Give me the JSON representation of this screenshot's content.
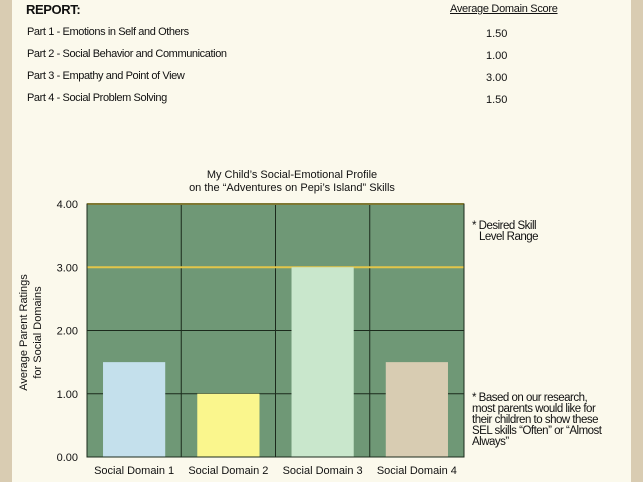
{
  "report": {
    "title": "REPORT:",
    "score_header": "Average Domain Score",
    "rows": [
      {
        "label": "Part 1 - Emotions in Self and Others",
        "score": "1.50"
      },
      {
        "label": "Part 2 - Social Behavior and Communication",
        "score": "1.00"
      },
      {
        "label": "Part 3 - Empathy and Point of View",
        "score": "3.00"
      },
      {
        "label": "Part 4 - Social Problem Solving",
        "score": "1.50"
      }
    ]
  },
  "chart_data": {
    "type": "bar",
    "title_line1": "My Child’s Social-Emotional Profile",
    "title_line2": "on the “Adventures on Pepi’s Island” Skills",
    "ylabel_line1": "Average Parent Ratings",
    "ylabel_line2": "for Social Domains",
    "xlabel": "",
    "categories": [
      "Social Domain 1",
      "Social Domain 2",
      "Social Domain 3",
      "Social Domain 4"
    ],
    "values": [
      1.5,
      1.0,
      3.0,
      1.5
    ],
    "ylim": [
      0,
      4
    ],
    "yticks": [
      "0.00",
      "1.00",
      "2.00",
      "3.00",
      "4.00"
    ],
    "desired_range": [
      3,
      4
    ],
    "grid": true,
    "colors": {
      "plot_bg": "#6f9876",
      "range_line": "#e2c64a",
      "grid_line": "#1b2a1c",
      "bars": [
        "#c4e0ec",
        "#faf68d",
        "#c9e7cc",
        "#d8ccb2"
      ]
    },
    "notes": {
      "desired": [
        "* Desired Skill",
        "Level Range"
      ],
      "research": [
        "* Based on our research,",
        "most parents would like for",
        "their children to show these",
        "SEL skills “Often” or “Almost",
        "Always”"
      ]
    }
  }
}
